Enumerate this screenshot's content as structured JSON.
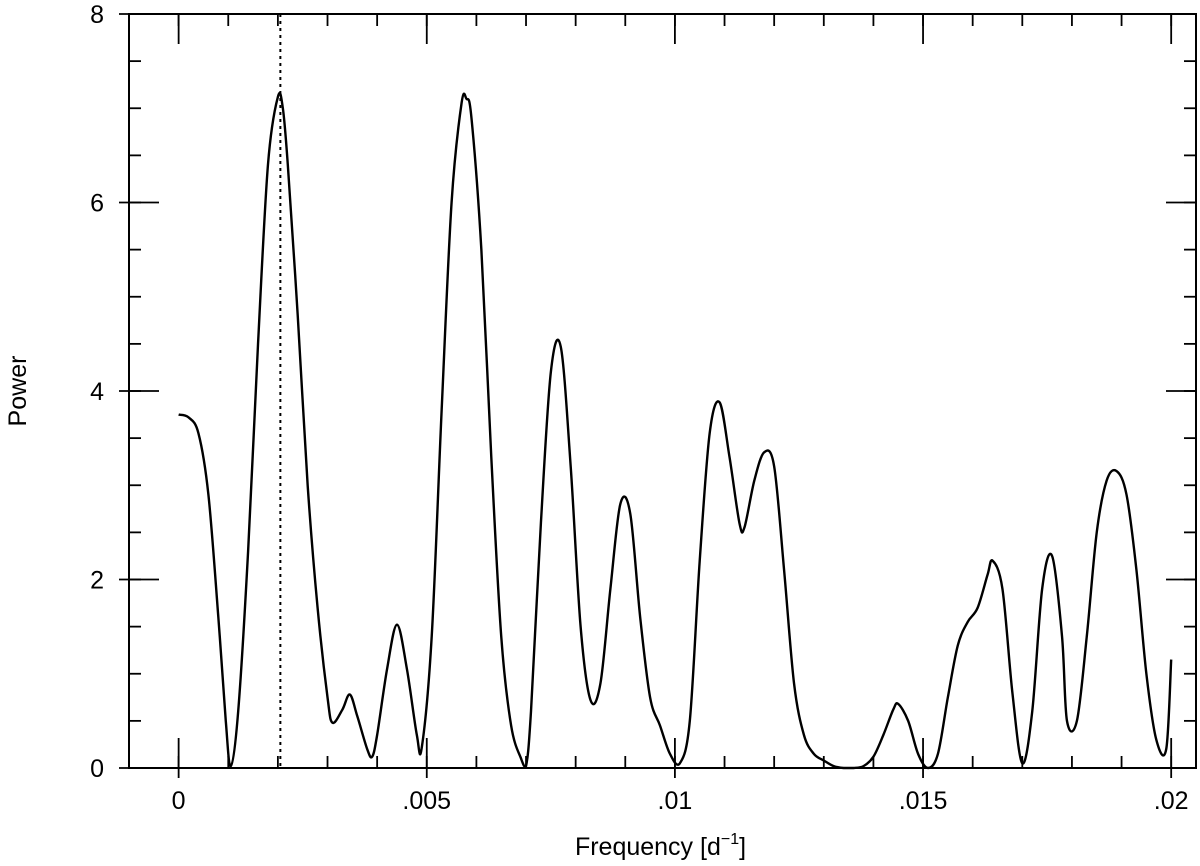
{
  "chart_data": {
    "type": "line",
    "xlabel": "Frequency [d",
    "xlabel_sup": "−1",
    "xlabel_close": "]",
    "ylabel": "Power",
    "xlim": [
      -0.001,
      0.0205
    ],
    "ylim": [
      0,
      8
    ],
    "x_ticks": [
      {
        "value": 0,
        "label": "0"
      },
      {
        "value": 0.005,
        "label": ".005"
      },
      {
        "value": 0.01,
        "label": ".01"
      },
      {
        "value": 0.015,
        "label": ".015"
      },
      {
        "value": 0.02,
        "label": ".02"
      }
    ],
    "x_minor_step": 0.001,
    "y_ticks": [
      {
        "value": 0,
        "label": "0"
      },
      {
        "value": 2,
        "label": "2"
      },
      {
        "value": 4,
        "label": "4"
      },
      {
        "value": 6,
        "label": "6"
      },
      {
        "value": 8,
        "label": "8"
      }
    ],
    "y_minor_step": 0.5,
    "grid": false,
    "reference_line": {
      "x": 0.00205,
      "style": "dotted"
    },
    "series": [
      {
        "x": [
          0,
          0.0002,
          0.0004,
          0.0006,
          0.0008,
          0.00095,
          0.00105,
          0.0012,
          0.0014,
          0.0016,
          0.0018,
          0.002,
          0.0021,
          0.0022,
          0.0024,
          0.0026,
          0.0028,
          0.003,
          0.0031,
          0.0033,
          0.00345,
          0.0036,
          0.0038,
          0.0039,
          0.004,
          0.0042,
          0.0044,
          0.0046,
          0.0048,
          0.0049,
          0.0051,
          0.0053,
          0.0055,
          0.0057,
          0.0058,
          0.0059,
          0.0061,
          0.0063,
          0.0065,
          0.0067,
          0.0069,
          0.007,
          0.0071,
          0.0073,
          0.0075,
          0.0077,
          0.0079,
          0.0081,
          0.0083,
          0.0085,
          0.0087,
          0.0089,
          0.0091,
          0.0093,
          0.0095,
          0.0097,
          0.0099,
          0.0101,
          0.0103,
          0.0105,
          0.0107,
          0.0109,
          0.0111,
          0.0113,
          0.0114,
          0.0116,
          0.0118,
          0.012,
          0.0122,
          0.0124,
          0.0126,
          0.0128,
          0.013,
          0.0132,
          0.0134,
          0.0136,
          0.0138,
          0.014,
          0.0142,
          0.0144,
          0.0145,
          0.0147,
          0.0149,
          0.0151,
          0.0153,
          0.0155,
          0.0157,
          0.0159,
          0.0161,
          0.0163,
          0.0164,
          0.0166,
          0.0168,
          0.017,
          0.0172,
          0.0174,
          0.0176,
          0.0178,
          0.0179,
          0.0181,
          0.0183,
          0.0185,
          0.0187,
          0.0189,
          0.0191,
          0.0193,
          0.0195,
          0.0197,
          0.0199,
          0.02
        ],
        "y": [
          3.75,
          3.72,
          3.55,
          2.9,
          1.6,
          0.5,
          0.02,
          0.6,
          2.3,
          4.5,
          6.4,
          7.12,
          7.0,
          6.4,
          4.8,
          3.0,
          1.7,
          0.75,
          0.48,
          0.62,
          0.78,
          0.55,
          0.2,
          0.12,
          0.35,
          1.05,
          1.52,
          1.05,
          0.35,
          0.22,
          1.4,
          3.8,
          6.0,
          7.05,
          7.1,
          6.9,
          5.5,
          3.3,
          1.4,
          0.45,
          0.1,
          0.02,
          0.6,
          2.6,
          4.2,
          4.47,
          3.2,
          1.5,
          0.72,
          0.9,
          1.9,
          2.8,
          2.7,
          1.6,
          0.75,
          0.45,
          0.15,
          0.05,
          0.5,
          2.2,
          3.55,
          3.88,
          3.3,
          2.6,
          2.55,
          3.05,
          3.35,
          3.2,
          2.1,
          0.9,
          0.35,
          0.15,
          0.08,
          0.02,
          0.0,
          0.0,
          0.02,
          0.12,
          0.35,
          0.62,
          0.68,
          0.5,
          0.15,
          0.0,
          0.15,
          0.75,
          1.3,
          1.55,
          1.7,
          2.05,
          2.2,
          1.9,
          0.8,
          0.05,
          0.6,
          1.9,
          2.25,
          1.4,
          0.5,
          0.5,
          1.4,
          2.5,
          3.05,
          3.15,
          2.9,
          2.1,
          1.0,
          0.3,
          0.2,
          1.15
        ]
      }
    ]
  }
}
